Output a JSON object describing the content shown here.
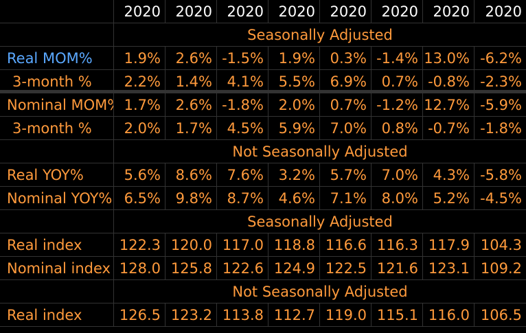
{
  "header": [
    "2020",
    "2020",
    "2020",
    "2020",
    "2020",
    "2020",
    "2020",
    "2020"
  ],
  "sections": {
    "s1": "Seasonally Adjusted",
    "s2": "Not Seasonally Adjusted",
    "s3": "Seasonally Adjusted",
    "s4": "Not Seasonally Adjusted"
  },
  "rows": {
    "real_mom": {
      "label": "Real MOM%",
      "values": [
        "1.9%",
        "2.6%",
        "-1.5%",
        "1.9%",
        "0.3%",
        "-1.4%",
        "13.0%",
        "-6.2%"
      ]
    },
    "real_3m": {
      "label": "3-month %",
      "values": [
        "2.2%",
        "1.4%",
        "4.1%",
        "5.5%",
        "6.9%",
        "0.7%",
        "-0.8%",
        "-2.3%"
      ]
    },
    "nominal_mom": {
      "label": "Nominal MOM%",
      "values": [
        "1.7%",
        "2.6%",
        "-1.8%",
        "2.0%",
        "0.7%",
        "-1.2%",
        "12.7%",
        "-5.9%"
      ]
    },
    "nominal_3m": {
      "label": "3-month %",
      "values": [
        "2.0%",
        "1.7%",
        "4.5%",
        "5.9%",
        "7.0%",
        "0.8%",
        "-0.7%",
        "-1.8%"
      ]
    },
    "real_yoy": {
      "label": "Real YOY%",
      "values": [
        "5.6%",
        "8.6%",
        "7.6%",
        "3.2%",
        "5.7%",
        "7.0%",
        "4.3%",
        "-5.8%"
      ]
    },
    "nominal_yoy": {
      "label": "Nominal YOY%",
      "values": [
        "6.5%",
        "9.8%",
        "8.7%",
        "4.6%",
        "7.1%",
        "8.0%",
        "5.2%",
        "-4.5%"
      ]
    },
    "real_index_sa": {
      "label": "Real index",
      "values": [
        "122.3",
        "120.0",
        "117.0",
        "118.8",
        "116.6",
        "116.3",
        "117.9",
        "104.3"
      ]
    },
    "nominal_index_sa": {
      "label": "Nominal index",
      "values": [
        "128.0",
        "125.8",
        "122.6",
        "124.9",
        "122.5",
        "121.6",
        "123.1",
        "109.2"
      ]
    },
    "real_index_nsa": {
      "label": "Real index",
      "values": [
        "126.5",
        "123.2",
        "113.8",
        "112.7",
        "119.0",
        "115.1",
        "116.0",
        "106.5"
      ]
    }
  },
  "colors": {
    "label_orange": "#ff9a3c",
    "label_blue": "#5aa8ff",
    "header_white": "#ffffff",
    "background": "#000000",
    "grid": "#333333"
  }
}
